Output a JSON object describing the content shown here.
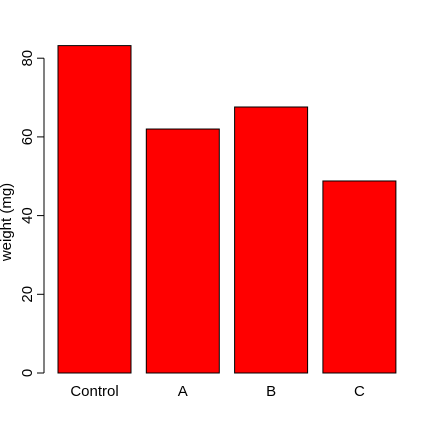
{
  "chart_data": {
    "type": "bar",
    "categories": [
      "Control",
      "A",
      "B",
      "C"
    ],
    "values": [
      83.2,
      62,
      67.6,
      48.8
    ],
    "title": "",
    "xlabel": "",
    "ylabel": "weight (mg)",
    "ylim": [
      0,
      80
    ],
    "yticks": [
      0,
      20,
      40,
      60,
      80
    ],
    "bar_color": "#ff0000",
    "grid": false
  }
}
